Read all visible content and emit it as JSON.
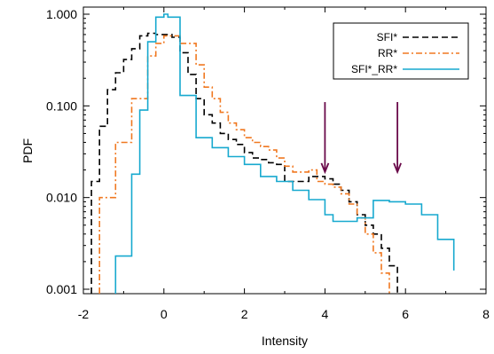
{
  "chart_data": {
    "type": "line",
    "xlabel": "Intensity",
    "ylabel": "PDF",
    "xlim": [
      -2,
      8
    ],
    "ylim": [
      0.001,
      1.2
    ],
    "yscale": "log",
    "x_ticks": [
      "-2",
      "0",
      "2",
      "4",
      "6",
      "8"
    ],
    "y_ticks": [
      "0.001",
      "0.010",
      "0.100",
      "1.000"
    ],
    "legend_position": "top-right",
    "series": [
      {
        "name": "SFI*",
        "color": "#000000",
        "dash": "dashed",
        "edges": [
          -1.8,
          -1.6,
          -1.4,
          -1.2,
          -1.0,
          -0.8,
          -0.6,
          -0.4,
          -0.2,
          0.0,
          0.2,
          0.4,
          0.6,
          0.8,
          1.0,
          1.2,
          1.4,
          1.6,
          1.8,
          2.0,
          2.2,
          2.4,
          2.6,
          2.8,
          3.0,
          3.2,
          3.4,
          3.6,
          3.8,
          4.0,
          4.2,
          4.4,
          4.6,
          4.8,
          5.0,
          5.2,
          5.4,
          5.6,
          5.8
        ],
        "values": [
          0.015,
          0.06,
          0.15,
          0.23,
          0.32,
          0.42,
          0.58,
          0.62,
          0.6,
          0.6,
          0.56,
          0.38,
          0.22,
          0.12,
          0.08,
          0.065,
          0.05,
          0.043,
          0.038,
          0.031,
          0.027,
          0.026,
          0.024,
          0.023,
          0.015,
          0.015,
          0.015,
          0.017,
          0.017,
          0.016,
          0.014,
          0.012,
          0.009,
          0.0065,
          0.005,
          0.004,
          0.0028,
          0.0018
        ]
      },
      {
        "name": "RR*",
        "color": "#F07820",
        "dash": "dashdot",
        "edges": [
          -1.6,
          -1.2,
          -0.8,
          -0.4,
          -0.2,
          0.0,
          0.4,
          0.8,
          1.0,
          1.2,
          1.4,
          1.6,
          1.8,
          2.0,
          2.2,
          2.4,
          2.6,
          2.8,
          3.0,
          3.2,
          3.4,
          3.6,
          3.8,
          4.0,
          4.2,
          4.4,
          4.6,
          4.8,
          5.0,
          5.2,
          5.4,
          5.6
        ],
        "values": [
          0.01,
          0.04,
          0.12,
          0.35,
          0.48,
          0.58,
          0.48,
          0.28,
          0.16,
          0.12,
          0.085,
          0.065,
          0.055,
          0.045,
          0.04,
          0.036,
          0.033,
          0.027,
          0.022,
          0.019,
          0.019,
          0.02,
          0.015,
          0.014,
          0.013,
          0.011,
          0.0085,
          0.006,
          0.004,
          0.0025,
          0.0015
        ]
      },
      {
        "name": "SFI*_RR*",
        "color": "#17A9CF",
        "dash": "solid",
        "edges": [
          -1.2,
          -0.8,
          -0.6,
          -0.4,
          -0.2,
          0.0,
          0.1,
          0.4,
          0.8,
          1.2,
          1.6,
          2.0,
          2.4,
          2.8,
          3.2,
          3.6,
          4.0,
          4.2,
          4.8,
          5.2,
          5.6,
          6.0,
          6.4,
          6.8,
          7.2
        ],
        "values": [
          0.0023,
          0.018,
          0.09,
          0.5,
          0.93,
          1.0,
          0.93,
          0.13,
          0.045,
          0.035,
          0.028,
          0.023,
          0.017,
          0.015,
          0.012,
          0.0095,
          0.0065,
          0.0055,
          0.006,
          0.0093,
          0.009,
          0.0085,
          0.0065,
          0.0035,
          0.0016
        ]
      }
    ],
    "annotations": [
      {
        "type": "arrow",
        "x": 4.0,
        "y_from": 0.11,
        "y_to": 0.019,
        "color": "#6A0A4A"
      },
      {
        "type": "arrow",
        "x": 5.8,
        "y_from": 0.11,
        "y_to": 0.019,
        "color": "#6A0A4A"
      }
    ]
  }
}
